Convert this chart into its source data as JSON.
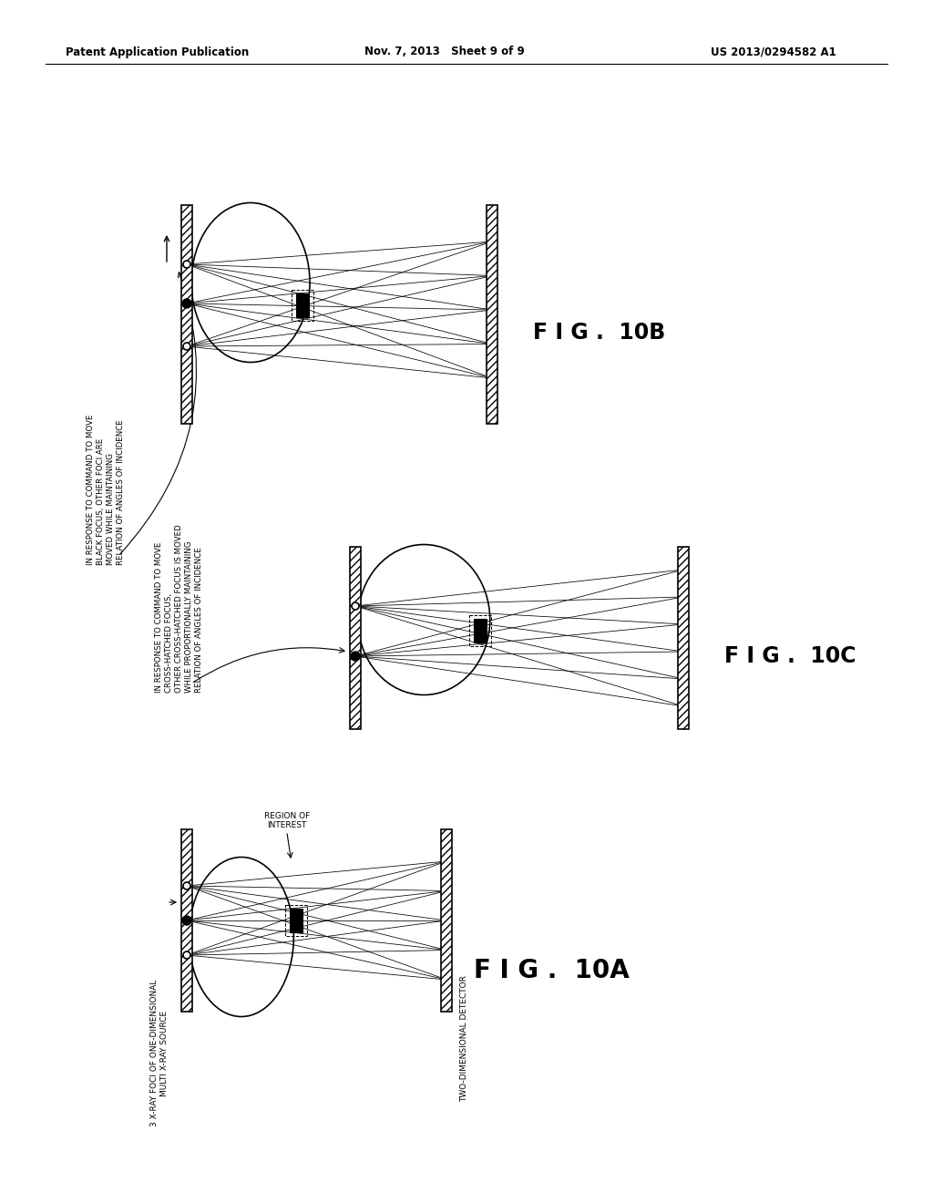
{
  "bg_color": "#ffffff",
  "header_left": "Patent Application Publication",
  "header_center": "Nov. 7, 2013   Sheet 9 of 9",
  "header_right": "US 2013/0294582 A1",
  "fig10a_label": "F I G .  10A",
  "fig10b_label": "F I G .  10B",
  "fig10c_label": "F I G .  10C",
  "label_source": "3 X-RAY FOCI OF ONE-DIMENSIONAL\nMULTI X-RAY SOURCE",
  "label_detector": "TWO-DIMENSIONAL DETECTOR",
  "label_roi": "REGION OF\nINTEREST",
  "label_cmd_black": "IN RESPONSE TO COMMAND TO MOVE\nBLACK FOCUS, OTHER FOCI ARE\nMOVED WHILE MAINTAINING\nRELATION OF ANGLES OF INCIDENCE",
  "label_cmd_cross": "IN RESPONSE TO COMMAND TO MOVE\nCROSS-HATCHED FOCUS,\nOTHER CROSS-HATCHED FOCUS IS MOVED\nWHILE PROPORTIONALLY MAINTAINING\nRELATION OF ANGLES OF INCIDENCE"
}
